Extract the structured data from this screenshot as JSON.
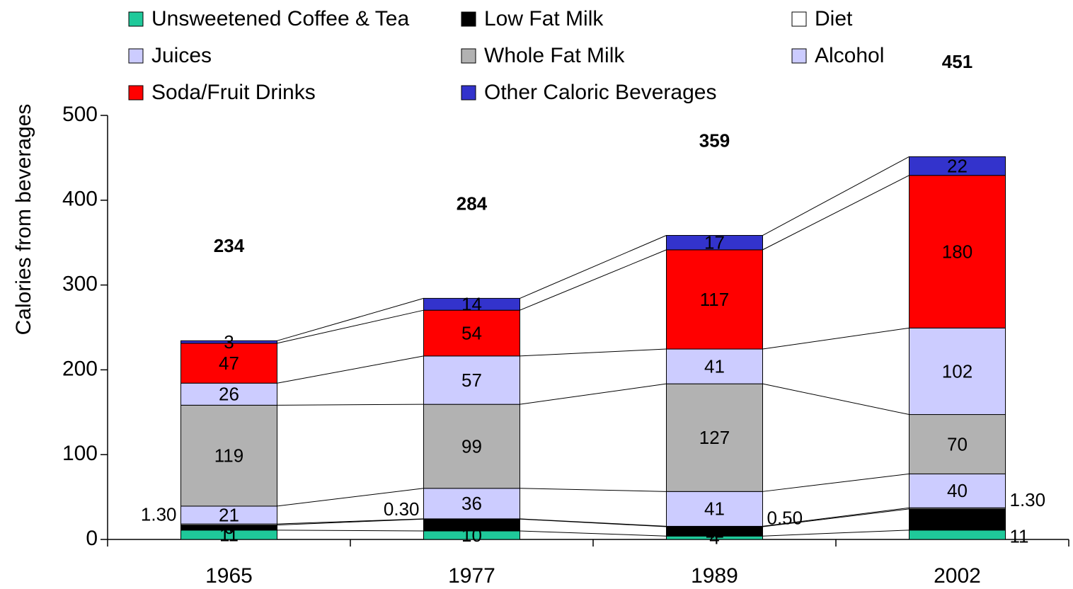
{
  "chart_data": {
    "type": "stacked_bar",
    "y_label": "Calories from beverages",
    "categories": [
      "1965",
      "1977",
      "1989",
      "2002"
    ],
    "series": [
      {
        "name": "Unsweetened Coffee & Tea",
        "color": "#1fc99a",
        "values": [
          11,
          10,
          4,
          11
        ]
      },
      {
        "name": "Low Fat Milk",
        "color": "#000000",
        "values": [
          6,
          14,
          11,
          25
        ],
        "value_labels": [
          "6",
          "14",
          "11",
          null
        ]
      },
      {
        "name": "Diet",
        "color": "#ffffff",
        "values": [
          1.3,
          0.3,
          0.5,
          1.3
        ],
        "value_labels": [
          "1.30",
          "0.30",
          "0.50",
          "1.30"
        ]
      },
      {
        "name": "Juices",
        "color": "#ccccff",
        "values": [
          21,
          36,
          41,
          40
        ]
      },
      {
        "name": "Whole Fat Milk",
        "color": "#b2b2b2",
        "values": [
          119,
          99,
          127,
          70
        ]
      },
      {
        "name": "Alcohol",
        "color": "#ccccff",
        "values": [
          26,
          57,
          41,
          102
        ]
      },
      {
        "name": "Soda/Fruit Drinks",
        "color": "#ff0000",
        "values": [
          47,
          54,
          117,
          180
        ]
      },
      {
        "name": "Other Caloric Beverages",
        "color": "#3333cc",
        "values": [
          3,
          14,
          17,
          22
        ]
      }
    ],
    "totals": [
      234,
      284,
      359,
      451
    ],
    "ylim": [
      0,
      500
    ],
    "yticks": [
      0,
      100,
      200,
      300,
      400,
      500
    ],
    "legend": "top"
  }
}
